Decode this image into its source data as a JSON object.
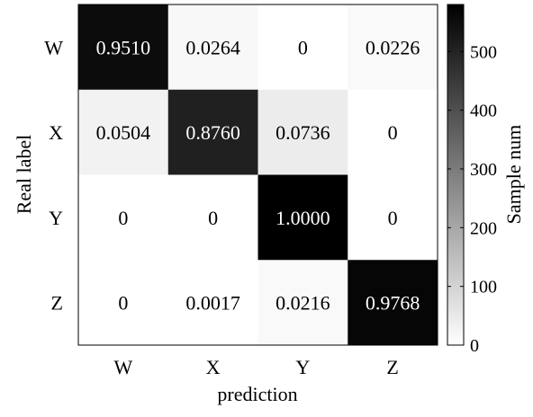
{
  "chart_data": {
    "type": "heatmap",
    "title": "",
    "xlabel": "prediction",
    "ylabel": "Real label",
    "x_categories": [
      "W",
      "X",
      "Y",
      "Z"
    ],
    "y_categories": [
      "W",
      "X",
      "Y",
      "Z"
    ],
    "values": [
      [
        0.951,
        0.0264,
        0,
        0.0226
      ],
      [
        0.0504,
        0.876,
        0.0736,
        0
      ],
      [
        0,
        0,
        1.0,
        0
      ],
      [
        0,
        0.0017,
        0.0216,
        0.9768
      ]
    ],
    "value_labels": [
      [
        "0.9510",
        "0.0264",
        "0",
        "0.0226"
      ],
      [
        "0.0504",
        "0.8760",
        "0.0736",
        "0"
      ],
      [
        "0",
        "0",
        "1.0000",
        "0"
      ],
      [
        "0",
        "0.0017",
        "0.0216",
        "0.9768"
      ]
    ],
    "colorbar": {
      "label": "Sample num",
      "range": [
        0,
        580
      ],
      "ticks": [
        0,
        100,
        200,
        300,
        400,
        500
      ],
      "tick_labels": [
        "0",
        "100",
        "200",
        "300",
        "400",
        "500"
      ],
      "colormap": "white-to-black"
    },
    "grid": false
  }
}
